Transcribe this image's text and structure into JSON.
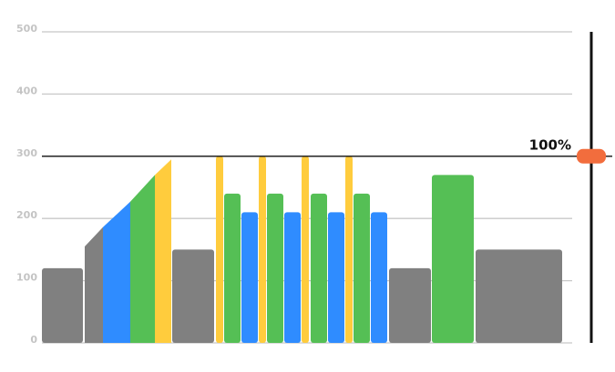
{
  "chart_data": {
    "type": "bar",
    "ylim": [
      0,
      500
    ],
    "yticks": [
      0,
      100,
      200,
      300,
      400,
      500
    ],
    "grid": true,
    "threshold": 300,
    "threshold_label": "100%",
    "bars": [
      {
        "color": "#808080",
        "value": 120
      },
      {
        "color": "#808080",
        "from": 155,
        "value": 186
      },
      {
        "color": "#2f8cff",
        "from": 186,
        "value": 227
      },
      {
        "color": "#55bf55",
        "from": 227,
        "value": 270
      },
      {
        "color": "#ffcc3d",
        "from": 270,
        "value": 295
      },
      {
        "color": "#808080",
        "value": 150
      },
      {
        "color": "#ffcc3d",
        "value": 300
      },
      {
        "color": "#55bf55",
        "value": 240
      },
      {
        "color": "#2f8cff",
        "value": 210
      },
      {
        "color": "#ffcc3d",
        "value": 300
      },
      {
        "color": "#55bf55",
        "value": 240
      },
      {
        "color": "#2f8cff",
        "value": 210
      },
      {
        "color": "#ffcc3d",
        "value": 300
      },
      {
        "color": "#55bf55",
        "value": 240
      },
      {
        "color": "#2f8cff",
        "value": 210
      },
      {
        "color": "#ffcc3d",
        "value": 300
      },
      {
        "color": "#55bf55",
        "value": 240
      },
      {
        "color": "#2f8cff",
        "value": 210
      },
      {
        "color": "#808080",
        "value": 120
      },
      {
        "color": "#55bf55",
        "value": 270
      },
      {
        "color": "#808080",
        "value": 150
      }
    ]
  }
}
